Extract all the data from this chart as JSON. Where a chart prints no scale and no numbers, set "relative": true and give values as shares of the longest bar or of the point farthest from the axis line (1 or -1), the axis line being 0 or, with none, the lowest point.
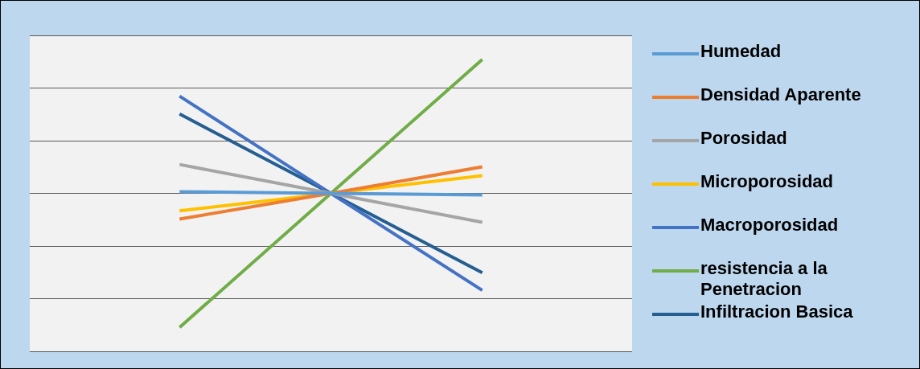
{
  "chart_data": {
    "type": "line",
    "relative": true,
    "grid": true,
    "legend": "right",
    "categories": [
      null,
      null,
      null
    ],
    "series": [
      {
        "name": "Humedad",
        "color": "#5b9bd5",
        "values": [
          0.547,
          0.541,
          0.536
        ]
      },
      {
        "name": "Densidad Aparente",
        "color": "#ed7d31",
        "values": [
          0.453,
          0.541,
          0.632
        ]
      },
      {
        "name": "Porosidad",
        "color": "#a5a5a5",
        "values": [
          0.64,
          0.541,
          0.442
        ]
      },
      {
        "name": "Microporosidad",
        "color": "#ffc000",
        "values": [
          0.481,
          0.541,
          0.602
        ]
      },
      {
        "name": "Macroporosidad",
        "color": "#4472c4",
        "values": [
          0.874,
          0.541,
          0.209
        ]
      },
      {
        "name": "resistencia a la Penetracion",
        "color": "#70ad47",
        "values": [
          0.082,
          0.541,
          1
        ]
      },
      {
        "name": "Infiltracion Basica",
        "color": "#255e91",
        "values": [
          0.813,
          0.541,
          0.269
        ]
      }
    ]
  }
}
